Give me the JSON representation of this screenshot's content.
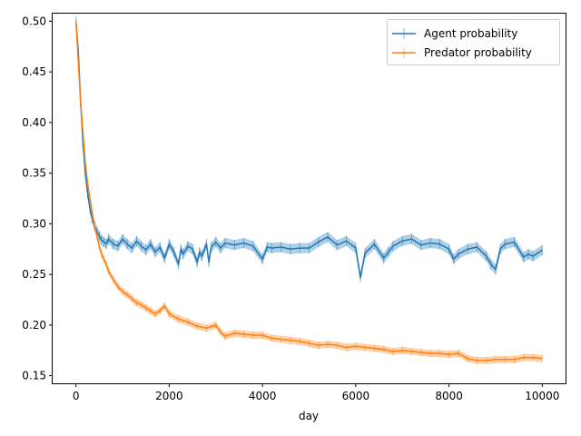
{
  "chart_data": {
    "type": "line",
    "xlabel": "day",
    "ylabel": "",
    "xlim": [
      -500,
      10500
    ],
    "ylim": [
      0.1425,
      0.5075
    ],
    "xticks": [
      0,
      2000,
      4000,
      6000,
      8000,
      10000
    ],
    "xtick_labels": [
      "0",
      "2000",
      "4000",
      "6000",
      "8000",
      "10000"
    ],
    "yticks": [
      0.15,
      0.2,
      0.25,
      0.3,
      0.35,
      0.4,
      0.45,
      0.5
    ],
    "ytick_labels": [
      "0.15",
      "0.20",
      "0.25",
      "0.30",
      "0.35",
      "0.40",
      "0.45",
      "0.50"
    ],
    "grid": false,
    "legend_position": "top-right",
    "error_bars": true,
    "series": [
      {
        "name": "Agent probability",
        "color": "#1f77b4",
        "x": [
          0,
          50,
          100,
          150,
          200,
          250,
          300,
          350,
          400,
          450,
          500,
          550,
          600,
          650,
          700,
          800,
          900,
          1000,
          1100,
          1200,
          1300,
          1400,
          1500,
          1600,
          1700,
          1800,
          1900,
          2000,
          2100,
          2200,
          2250,
          2300,
          2400,
          2500,
          2600,
          2650,
          2700,
          2800,
          2850,
          2900,
          3000,
          3100,
          3200,
          3400,
          3600,
          3800,
          4000,
          4100,
          4200,
          4400,
          4600,
          4800,
          5000,
          5200,
          5400,
          5600,
          5800,
          6000,
          6100,
          6200,
          6400,
          6600,
          6700,
          6800,
          7000,
          7200,
          7400,
          7600,
          7800,
          8000,
          8100,
          8200,
          8400,
          8600,
          8800,
          8900,
          9000,
          9100,
          9200,
          9400,
          9600,
          9700,
          9800,
          10000
        ],
        "y": [
          0.5,
          0.47,
          0.42,
          0.38,
          0.35,
          0.33,
          0.315,
          0.305,
          0.298,
          0.292,
          0.288,
          0.284,
          0.282,
          0.28,
          0.285,
          0.28,
          0.278,
          0.285,
          0.28,
          0.276,
          0.283,
          0.278,
          0.274,
          0.28,
          0.272,
          0.277,
          0.266,
          0.28,
          0.272,
          0.26,
          0.275,
          0.27,
          0.278,
          0.275,
          0.262,
          0.272,
          0.268,
          0.28,
          0.262,
          0.277,
          0.282,
          0.276,
          0.281,
          0.279,
          0.281,
          0.278,
          0.265,
          0.277,
          0.276,
          0.277,
          0.275,
          0.276,
          0.276,
          0.282,
          0.287,
          0.279,
          0.283,
          0.276,
          0.247,
          0.271,
          0.28,
          0.266,
          0.272,
          0.278,
          0.283,
          0.285,
          0.279,
          0.281,
          0.28,
          0.275,
          0.265,
          0.27,
          0.275,
          0.277,
          0.268,
          0.26,
          0.255,
          0.275,
          0.28,
          0.282,
          0.267,
          0.27,
          0.268,
          0.274
        ],
        "err": 0.005
      },
      {
        "name": "Predator probability",
        "color": "#ff7f0e",
        "x": [
          0,
          50,
          100,
          150,
          200,
          250,
          300,
          350,
          400,
          450,
          500,
          550,
          600,
          650,
          700,
          800,
          900,
          1000,
          1100,
          1200,
          1300,
          1400,
          1500,
          1600,
          1700,
          1800,
          1900,
          2000,
          2200,
          2400,
          2600,
          2800,
          3000,
          3100,
          3200,
          3400,
          3600,
          3800,
          4000,
          4200,
          4400,
          4600,
          4800,
          5000,
          5200,
          5400,
          5600,
          5800,
          6000,
          6200,
          6400,
          6600,
          6800,
          7000,
          7200,
          7400,
          7600,
          7800,
          8000,
          8200,
          8400,
          8600,
          8800,
          9000,
          9200,
          9400,
          9600,
          9800,
          10000
        ],
        "y": [
          0.5,
          0.46,
          0.42,
          0.39,
          0.36,
          0.34,
          0.325,
          0.31,
          0.298,
          0.288,
          0.278,
          0.27,
          0.265,
          0.26,
          0.253,
          0.245,
          0.238,
          0.233,
          0.23,
          0.226,
          0.222,
          0.22,
          0.217,
          0.214,
          0.211,
          0.214,
          0.219,
          0.211,
          0.206,
          0.203,
          0.199,
          0.197,
          0.2,
          0.193,
          0.189,
          0.192,
          0.191,
          0.19,
          0.19,
          0.187,
          0.186,
          0.185,
          0.184,
          0.182,
          0.18,
          0.181,
          0.18,
          0.178,
          0.179,
          0.178,
          0.177,
          0.176,
          0.174,
          0.175,
          0.174,
          0.173,
          0.172,
          0.172,
          0.171,
          0.172,
          0.167,
          0.165,
          0.165,
          0.166,
          0.166,
          0.166,
          0.168,
          0.168,
          0.167
        ],
        "err": 0.0035
      }
    ]
  }
}
